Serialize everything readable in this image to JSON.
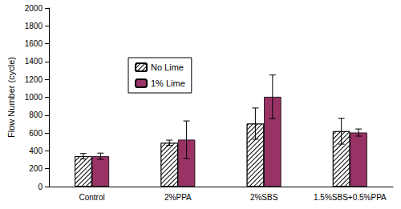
{
  "chart_data": {
    "type": "bar",
    "y_label": "Flow Number (cycle)",
    "categories": [
      "Control",
      "2%PPA",
      "2%SBS",
      "1.5%SBS+0.5%PPA"
    ],
    "series": [
      {
        "name": "No Lime",
        "color": "#ffffff",
        "values": [
          340,
          490,
          705,
          620
        ],
        "errors": [
          30,
          30,
          175,
          145
        ]
      },
      {
        "name": "1% Lime",
        "color": "#993366",
        "values": [
          340,
          525,
          1005,
          605
        ],
        "errors": [
          35,
          210,
          245,
          40
        ]
      }
    ],
    "ylim": [
      0,
      2000
    ],
    "yticks": [
      0,
      200,
      400,
      600,
      800,
      1000,
      1200,
      1400,
      1600,
      1800,
      2000
    ],
    "grid": false,
    "legend": "upper left"
  }
}
